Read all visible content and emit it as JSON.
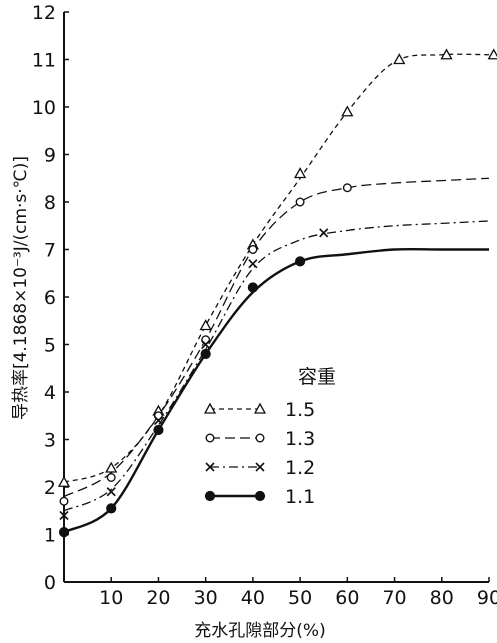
{
  "chart_data": {
    "type": "line",
    "xlabel": "充水孔隙部分(%)",
    "ylabel": "导热率[4.1868×10⁻³J/(cm·s·℃)]",
    "xlim": [
      0,
      90
    ],
    "ylim": [
      0,
      12
    ],
    "x_ticks": [
      "10",
      "20",
      "30",
      "40",
      "50",
      "60",
      "70",
      "80",
      "90"
    ],
    "y_ticks": [
      "0",
      "1",
      "2",
      "3",
      "4",
      "5",
      "6",
      "7",
      "8",
      "9",
      "10",
      "11",
      "12"
    ],
    "grid": false,
    "legend_title": "容重",
    "legend_position": "center-right",
    "series": [
      {
        "name": "1.5",
        "marker": "triangle",
        "dash": "dashed",
        "curve_x": [
          0,
          10,
          20,
          30,
          40,
          50,
          60,
          70,
          80,
          90
        ],
        "curve_y": [
          2.1,
          2.4,
          3.5,
          5.4,
          7.1,
          8.5,
          9.9,
          10.95,
          11.1,
          11.1
        ],
        "points_x": [
          0,
          10,
          20,
          30,
          40,
          50,
          60,
          71,
          81,
          91
        ],
        "points_y": [
          2.1,
          2.4,
          3.6,
          5.4,
          7.1,
          8.6,
          9.9,
          11.0,
          11.1,
          11.1
        ]
      },
      {
        "name": "1.3",
        "marker": "circle-open",
        "dash": "long-dashed",
        "curve_x": [
          0,
          10,
          20,
          30,
          40,
          50,
          60,
          70,
          80,
          90
        ],
        "curve_y": [
          1.8,
          2.3,
          3.5,
          5.1,
          7.0,
          8.0,
          8.3,
          8.4,
          8.45,
          8.5
        ],
        "points_x": [
          0,
          10,
          20,
          30,
          40,
          50,
          60
        ],
        "points_y": [
          1.7,
          2.2,
          3.5,
          5.1,
          7.0,
          8.0,
          8.3
        ]
      },
      {
        "name": "1.2",
        "marker": "cross",
        "dash": "dash-dot",
        "curve_x": [
          0,
          10,
          20,
          30,
          40,
          50,
          60,
          70,
          80,
          90
        ],
        "curve_y": [
          1.5,
          1.95,
          3.3,
          4.9,
          6.6,
          7.2,
          7.4,
          7.5,
          7.55,
          7.6
        ],
        "points_x": [
          0,
          10,
          20,
          30,
          40,
          55
        ],
        "points_y": [
          1.4,
          1.9,
          3.4,
          5.0,
          6.7,
          7.35
        ]
      },
      {
        "name": "1.1",
        "marker": "circle-filled",
        "dash": "solid",
        "curve_x": [
          0,
          10,
          20,
          30,
          40,
          50,
          60,
          70,
          80,
          90
        ],
        "curve_y": [
          1.05,
          1.55,
          3.2,
          4.8,
          6.1,
          6.75,
          6.9,
          7.0,
          7.0,
          7.0
        ],
        "points_x": [
          0,
          10,
          20,
          30,
          40,
          50
        ],
        "points_y": [
          1.05,
          1.55,
          3.2,
          4.8,
          6.2,
          6.75
        ]
      }
    ]
  }
}
